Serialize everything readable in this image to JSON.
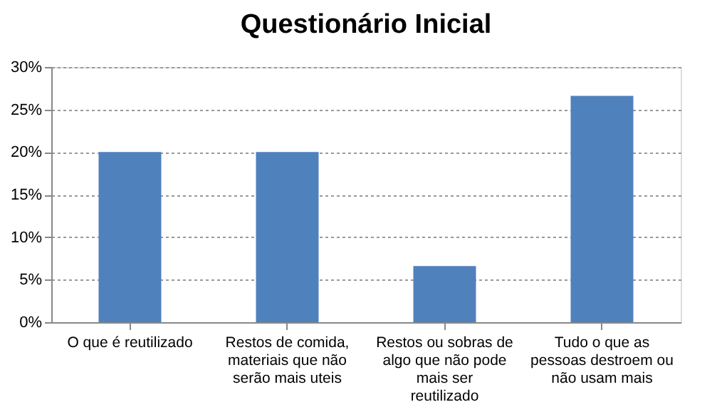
{
  "chart_data": {
    "type": "bar",
    "title": "Questionário Inicial",
    "categories": [
      "O que é reutilizado",
      "Restos de comida, materiais que não serão mais uteis",
      "Restos ou sobras de algo que não pode mais ser reutilizado",
      "Tudo o que as pessoas destroem ou não usam mais"
    ],
    "values": [
      20,
      20,
      6.6,
      26.6
    ],
    "color": "#4f81bd",
    "ylim": [
      0,
      30
    ],
    "yticks": [
      {
        "value": 0,
        "label": "0%"
      },
      {
        "value": 5,
        "label": "5%"
      },
      {
        "value": 10,
        "label": "10%"
      },
      {
        "value": 15,
        "label": "15%"
      },
      {
        "value": 20,
        "label": "20%"
      },
      {
        "value": 25,
        "label": "25%"
      },
      {
        "value": 30,
        "label": "30%"
      }
    ],
    "grid": "y"
  }
}
